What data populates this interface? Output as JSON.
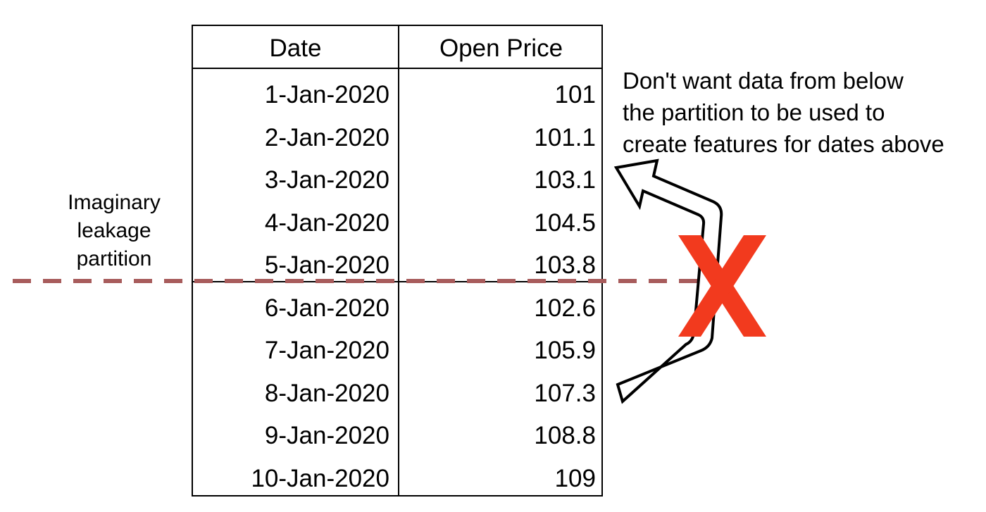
{
  "table": {
    "headers": [
      "Date",
      "Open Price"
    ],
    "rows": [
      {
        "date": "1-Jan-2020",
        "price": "101"
      },
      {
        "date": "2-Jan-2020",
        "price": "101.1"
      },
      {
        "date": "3-Jan-2020",
        "price": "103.1"
      },
      {
        "date": "4-Jan-2020",
        "price": "104.5"
      },
      {
        "date": "5-Jan-2020",
        "price": "103.8"
      },
      {
        "date": "6-Jan-2020",
        "price": "102.6"
      },
      {
        "date": "7-Jan-2020",
        "price": "105.9"
      },
      {
        "date": "8-Jan-2020",
        "price": "107.3"
      },
      {
        "date": "9-Jan-2020",
        "price": "108.8"
      },
      {
        "date": "10-Jan-2020",
        "price": "109"
      }
    ]
  },
  "partition_label": [
    "Imaginary",
    "leakage",
    "partition"
  ],
  "note": [
    "Don't want data from below",
    "the partition to be used to",
    "create features for dates above"
  ],
  "colors": {
    "partition_line": "#a85c5c",
    "cross": "#f23a1e",
    "grid": "#000000"
  },
  "icons": {
    "arrow": "curved-arrow-icon",
    "cross": "red-x-icon"
  }
}
